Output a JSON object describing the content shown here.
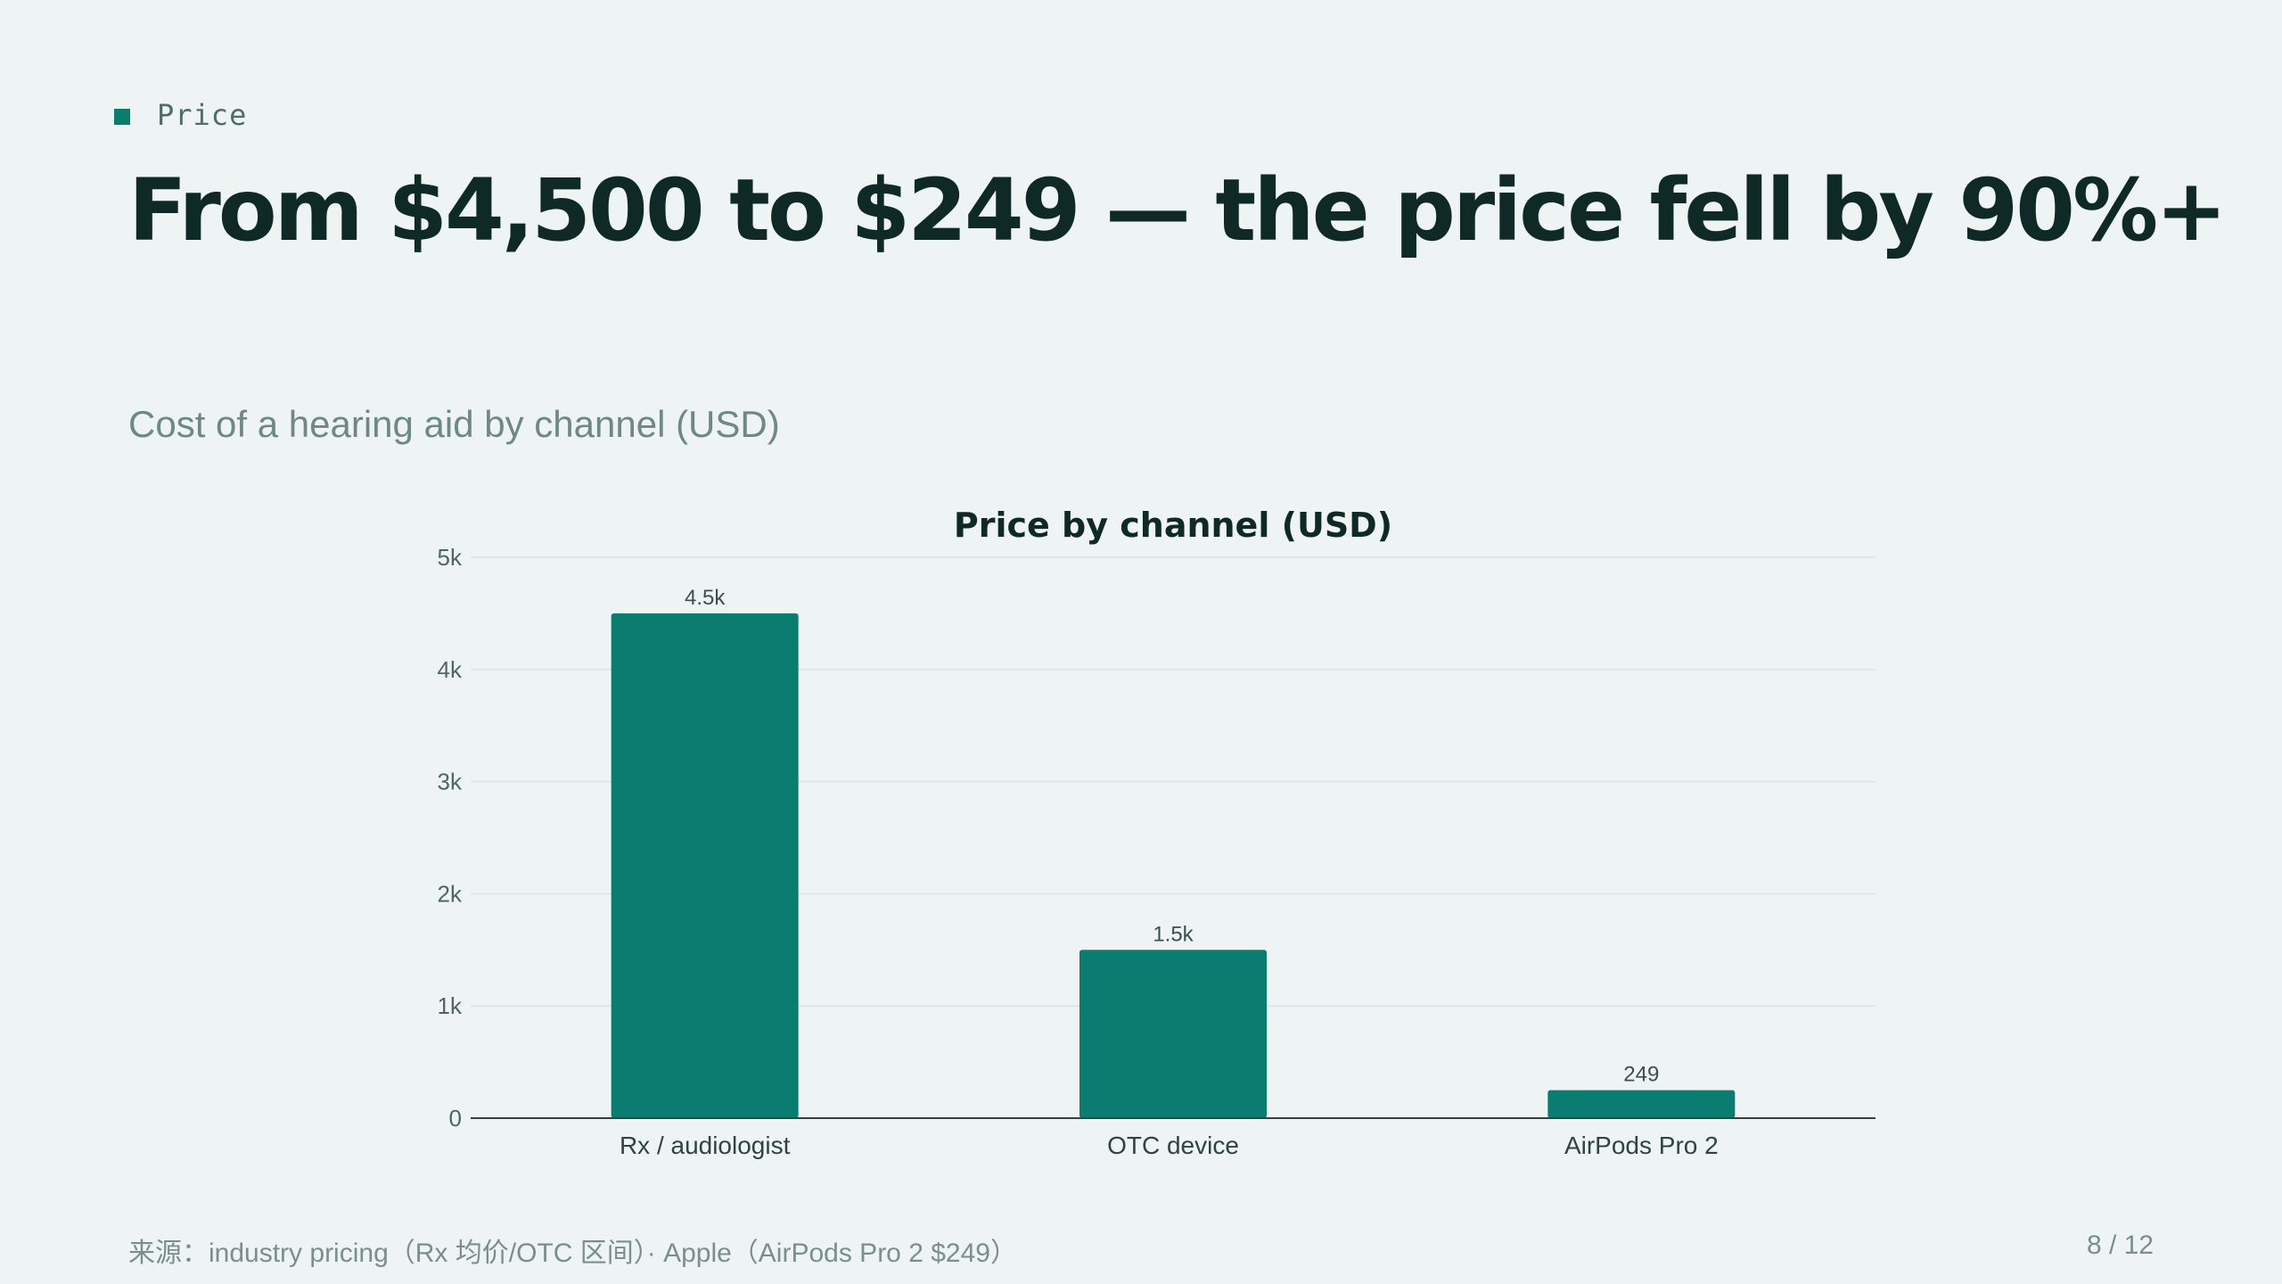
{
  "slide": {
    "kicker": "Price",
    "headline": "From $4,500 to $249 — the price fell by 90%+",
    "subtitle": "Cost of a hearing aid by channel (USD)",
    "source": "来源：industry pricing（Rx 均价/OTC 区间）· Apple（AirPods Pro 2 $249）",
    "page": "8 / 12"
  },
  "colors": {
    "accent": "#0a7d70",
    "text": "#0f2a26",
    "muted": "#6e8884",
    "background": "#eef4f4"
  },
  "chart_data": {
    "type": "bar",
    "title": "Price by channel (USD)",
    "xlabel": "",
    "ylabel": "",
    "categories": [
      "Rx / audiologist",
      "OTC device",
      "AirPods Pro 2"
    ],
    "values": [
      4500,
      1500,
      249
    ],
    "data_labels": [
      "4.5k",
      "1.5k",
      "249"
    ],
    "ylim": [
      0,
      5000
    ],
    "yticks": [
      0,
      1000,
      2000,
      3000,
      4000,
      5000
    ],
    "ytick_labels": [
      "0",
      "1k",
      "2k",
      "3k",
      "4k",
      "5k"
    ],
    "grid": true,
    "legend": "none"
  }
}
